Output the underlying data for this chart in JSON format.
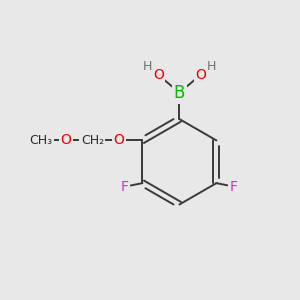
{
  "bg_color": "#e8e8e8",
  "bond_color": "#2a5a2a",
  "bond_color_dark": "#3a3a3a",
  "bond_width": 1.4,
  "atom_colors": {
    "B": "#00bb00",
    "O": "#ee0000",
    "H": "#707070",
    "F": "#cc33cc",
    "C": "#2a2a2a"
  },
  "font_size": 10,
  "fig_bg": "#e8e8e8"
}
